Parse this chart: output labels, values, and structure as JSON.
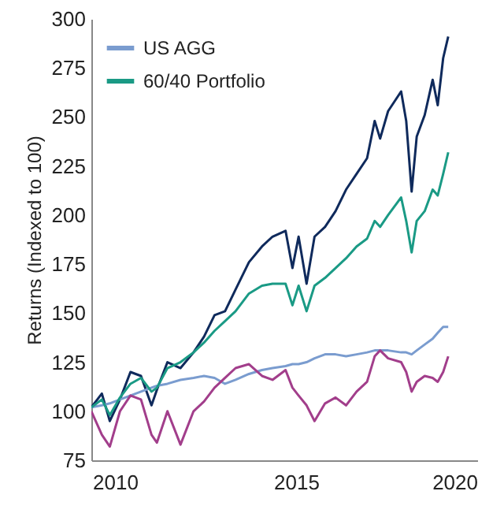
{
  "chart_data": {
    "type": "line",
    "ylabel": "Returns (Indexed to 100)",
    "xlim": [
      2009.35,
      2020
    ],
    "ylim": [
      75,
      300
    ],
    "xticks": [
      2010,
      2015,
      2020
    ],
    "yticks": [
      75,
      100,
      125,
      150,
      175,
      200,
      225,
      250,
      275,
      300
    ],
    "grid": false,
    "legend": "top left",
    "line_style": "solid",
    "marker": "none",
    "x": [
      2009.35,
      2009.64,
      2009.86,
      2010.14,
      2010.43,
      2010.72,
      2011.01,
      2011.16,
      2011.45,
      2011.81,
      2012.17,
      2012.46,
      2012.75,
      2013.04,
      2013.33,
      2013.7,
      2014.06,
      2014.35,
      2014.71,
      2014.9,
      2015.07,
      2015.29,
      2015.51,
      2015.8,
      2016.09,
      2016.38,
      2016.67,
      2016.96,
      2017.17,
      2017.32,
      2017.54,
      2017.9,
      2018.04,
      2018.19,
      2018.33,
      2018.55,
      2018.77,
      2018.91,
      2019.06,
      2019.2
    ],
    "series": [
      {
        "color": "#0f2a5c",
        "values": [
          102,
          109,
          95,
          106,
          120,
          118,
          103,
          111,
          125,
          122,
          130,
          138,
          149,
          151,
          162,
          176,
          184,
          189,
          192,
          173,
          189,
          165,
          189,
          194,
          202,
          213,
          221,
          229,
          248,
          239,
          253,
          263,
          248,
          212,
          240,
          251,
          269,
          256,
          280,
          291
        ]
      },
      {
        "name": "US AGG",
        "color": "#7a9ccf",
        "values": [
          102,
          103,
          104,
          106,
          108,
          110,
          112,
          113,
          114,
          116,
          117,
          118,
          117,
          114,
          116,
          119,
          121,
          122,
          123,
          124,
          124,
          125,
          127,
          129,
          129,
          128,
          129,
          130,
          131,
          131,
          131,
          130,
          130,
          129,
          131,
          134,
          137,
          140,
          143,
          143
        ]
      },
      {
        "color": "#a23e8b",
        "values": [
          100,
          88,
          82,
          100,
          108,
          106,
          88,
          84,
          100,
          83,
          100,
          105,
          112,
          117,
          122,
          124,
          118,
          116,
          121,
          112,
          108,
          103,
          95,
          104,
          107,
          103,
          110,
          115,
          128,
          131,
          127,
          125,
          120,
          110,
          115,
          118,
          117,
          115,
          120,
          128
        ]
      },
      {
        "name": "60/40 Portfolio",
        "color": "#1a9a85",
        "values": [
          102,
          106,
          98,
          107,
          114,
          117,
          110,
          112,
          122,
          125,
          130,
          135,
          141,
          146,
          151,
          160,
          164,
          165,
          165,
          154,
          164,
          151,
          164,
          168,
          173,
          178,
          184,
          188,
          197,
          194,
          200,
          209,
          197,
          181,
          197,
          202,
          213,
          210,
          221,
          232
        ]
      }
    ]
  }
}
